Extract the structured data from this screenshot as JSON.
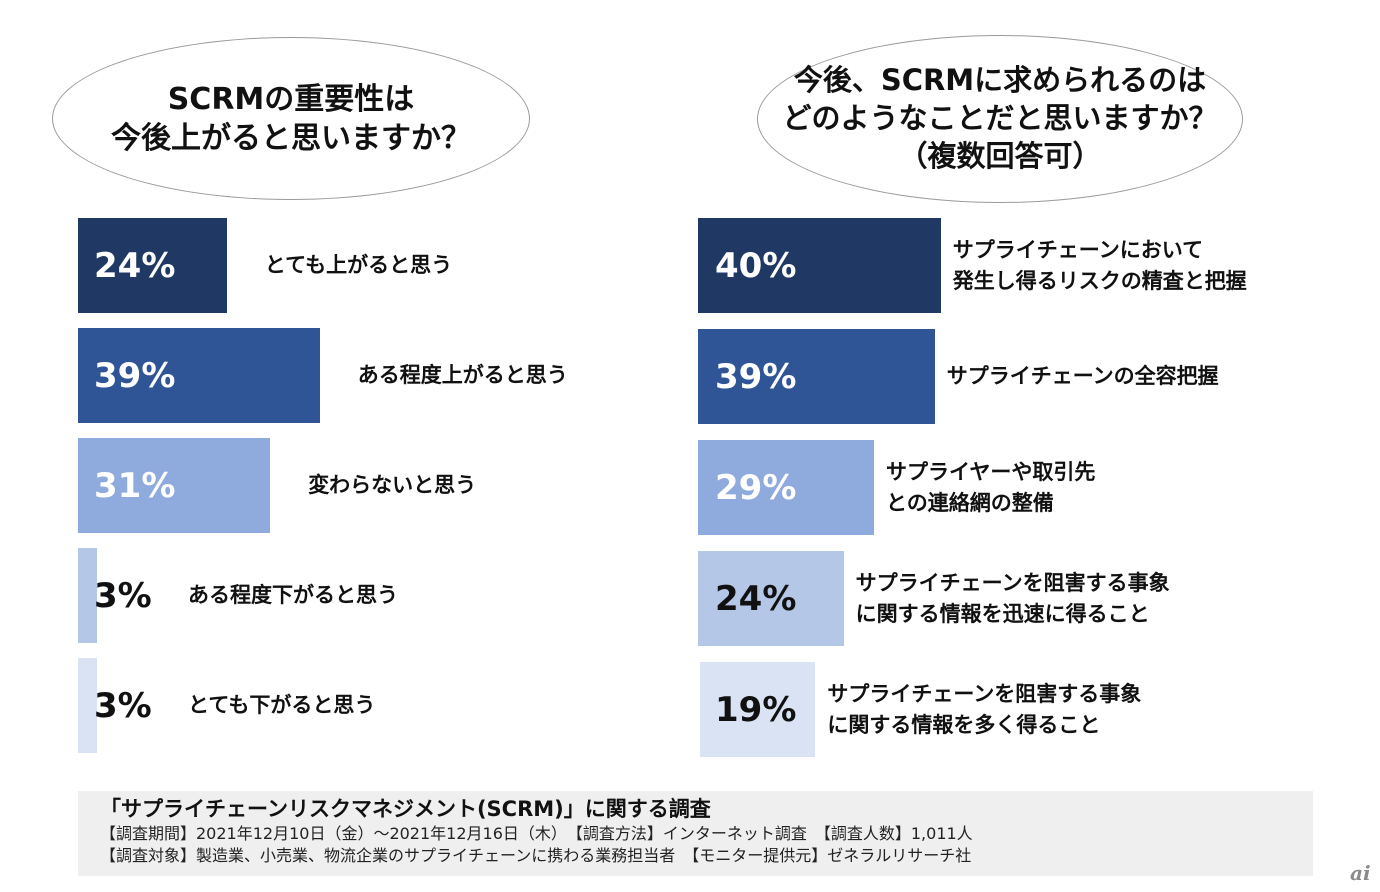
{
  "left": {
    "question": "SCRMの重要性は\n今後上がると思いますか？",
    "chart_data": {
      "type": "bar",
      "orientation": "horizontal",
      "categories": [
        "とても上がると思う",
        "ある程度上がると思う",
        "変わらないと思う",
        "ある程度下がると思う",
        "とても下がると思う"
      ],
      "values": [
        24,
        39,
        31,
        3,
        3
      ],
      "value_labels": [
        "24%",
        "39%",
        "31%",
        "3%",
        "3%"
      ],
      "colors": [
        "#1f3864",
        "#2f5597",
        "#8faadc",
        "#b4c7e7",
        "#dae3f3"
      ]
    }
  },
  "right": {
    "question": "今後、SCRMに求められるのは\nどのようなことだと思いますか？\n（複数回答可）",
    "chart_data": {
      "type": "bar",
      "orientation": "horizontal",
      "categories": [
        "サプライチェーンにおいて\n発生し得るリスクの精査と把握",
        "サプライチェーンの全容把握",
        "サプライヤーや取引先\nとの連絡網の整備",
        "サプライチェーンを阻害する事象\nに関する情報を迅速に得ること",
        "サプライチェーンを阻害する事象\nに関する情報を多く得ること"
      ],
      "values": [
        40,
        39,
        29,
        24,
        19
      ],
      "value_labels": [
        "40%",
        "39%",
        "29%",
        "24%",
        "19%"
      ],
      "colors": [
        "#1f3864",
        "#2f5597",
        "#8faadc",
        "#b4c7e7",
        "#dae3f3"
      ]
    }
  },
  "footer": {
    "title": "「サプライチェーンリスクマネジメント(SCRM)」に関する調査",
    "line1": "【調査期間】2021年12月10日（金）～2021年12月16日（木）　【調査方法】インターネット調査　【調査人数】1,011人",
    "line2": "【調査対象】製造業、小売業、物流企業のサプライチェーンに携わる業務担当者　【モニター提供元】ゼネラルリサーチ社"
  },
  "logo": "ai"
}
